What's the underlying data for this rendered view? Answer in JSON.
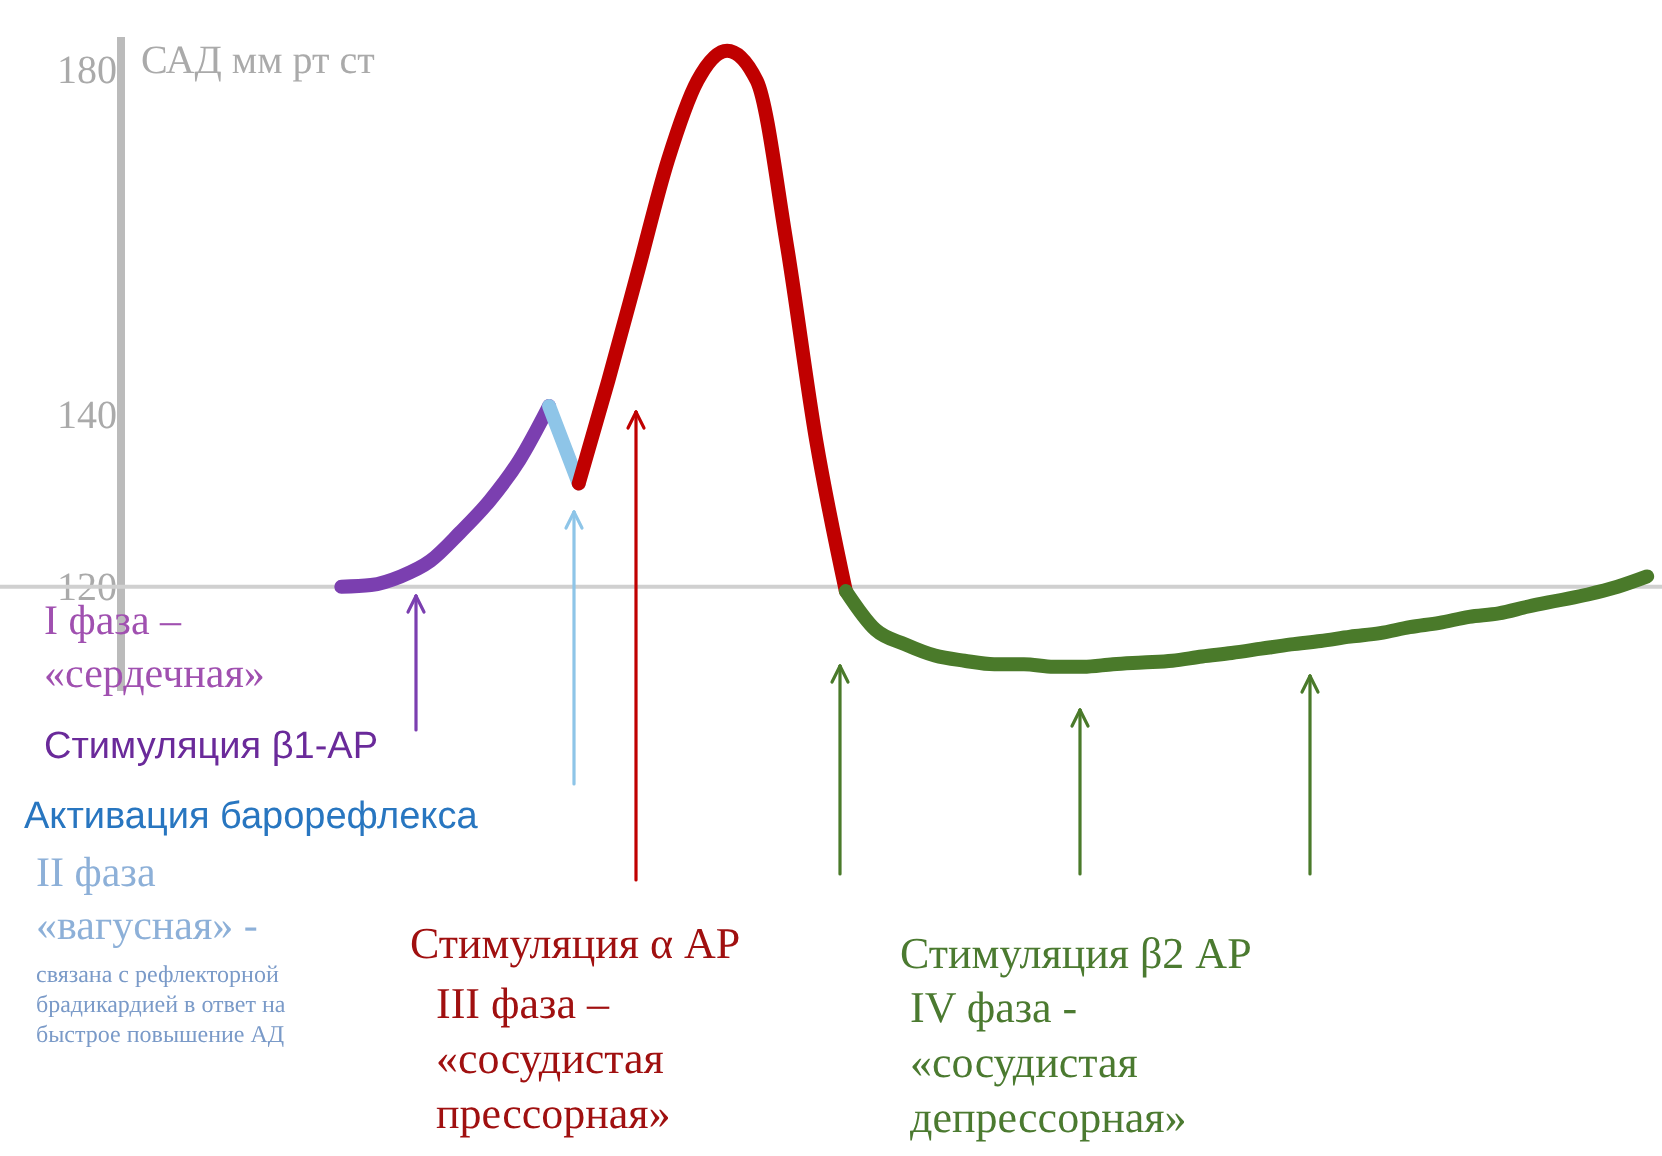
{
  "chart_data": {
    "type": "line",
    "ylabel": "САД мм рт ст",
    "categories": [
      null,
      null,
      null,
      null,
      null,
      null,
      null,
      null,
      null,
      null,
      null,
      null,
      null,
      null,
      null,
      null,
      null,
      null,
      null,
      null,
      null,
      null,
      null,
      null,
      null,
      null,
      null,
      null,
      null,
      null,
      null,
      null,
      null,
      null,
      null,
      null,
      null,
      null,
      null,
      null,
      null,
      null,
      null,
      null,
      null,
      null,
      null,
      null,
      null,
      null,
      null,
      null,
      null,
      null,
      null,
      null
    ],
    "series": [
      {
        "color": "#7b3fb0",
        "values": [
          null,
          null,
          null,
          null,
          null,
          null,
          null,
          null,
          null,
          null,
          null,
          120,
          120.2,
          121.2,
          123,
          126.3,
          130,
          134.7,
          141,
          null,
          null,
          null,
          null,
          null,
          null,
          null,
          null,
          null,
          null,
          null,
          null,
          null,
          null,
          null,
          null,
          null,
          null,
          null,
          null,
          null,
          null,
          null,
          null,
          null,
          null,
          null,
          null,
          null,
          null,
          null,
          null,
          null,
          null,
          null,
          null,
          null
        ]
      },
      {
        "color": "#8ec5e8",
        "values": [
          null,
          null,
          null,
          null,
          null,
          null,
          null,
          null,
          null,
          null,
          null,
          null,
          null,
          null,
          null,
          null,
          null,
          null,
          141,
          132,
          null,
          null,
          null,
          null,
          null,
          null,
          null,
          null,
          null,
          null,
          null,
          null,
          null,
          null,
          null,
          null,
          null,
          null,
          null,
          null,
          null,
          null,
          null,
          null,
          null,
          null,
          null,
          null,
          null,
          null,
          null,
          null,
          null,
          null,
          null,
          null
        ]
      },
      {
        "color": "#c00000",
        "values": [
          null,
          null,
          null,
          null,
          null,
          null,
          null,
          null,
          null,
          null,
          null,
          null,
          null,
          null,
          null,
          null,
          null,
          null,
          null,
          132,
          144,
          156.7,
          169.5,
          178.8,
          182.3,
          178.8,
          160,
          137,
          119.5,
          null,
          null,
          null,
          null,
          null,
          null,
          null,
          null,
          null,
          null,
          null,
          null,
          null,
          null,
          null,
          null,
          null,
          null,
          null,
          null,
          null,
          null,
          null,
          null,
          null,
          null,
          null
        ]
      },
      {
        "color": "#4a7a2a",
        "values": [
          null,
          null,
          null,
          null,
          null,
          null,
          null,
          null,
          null,
          null,
          null,
          null,
          null,
          null,
          null,
          null,
          null,
          null,
          null,
          null,
          null,
          null,
          null,
          null,
          null,
          null,
          null,
          null,
          119.5,
          115,
          113.3,
          112,
          111.4,
          111,
          111,
          110.7,
          110.7,
          111,
          111.2,
          111.4,
          111.9,
          112.3,
          112.8,
          113.3,
          113.7,
          114.2,
          114.6,
          115.3,
          115.8,
          116.5,
          116.9,
          117.7,
          118.4,
          119.1,
          120,
          121.2
        ]
      }
    ],
    "ylim": [
      108,
      184
    ],
    "yticks": [
      120,
      140,
      180
    ],
    "grid": false,
    "marker": "none",
    "line_style": "solid",
    "ref_lines": [
      {
        "axis": "y",
        "value": 120,
        "color": "#d0d0d0"
      }
    ],
    "annotations": [
      "I фаза –\n«сердечная»",
      "Стимуляция β1-АР",
      "Активация барорефлекса",
      "II фаза\n«вагусная» -",
      "связана с рефлекторной\nбрадикардией в ответ на\nбыстрое повышение АД",
      "Стимуляция α АР",
      "III фаза –\n  «сосудистая\nпрессорная»",
      "Стимуляция β2 АР",
      "IV фаза -\n«сосудистая\nдепрессорная»"
    ]
  }
}
